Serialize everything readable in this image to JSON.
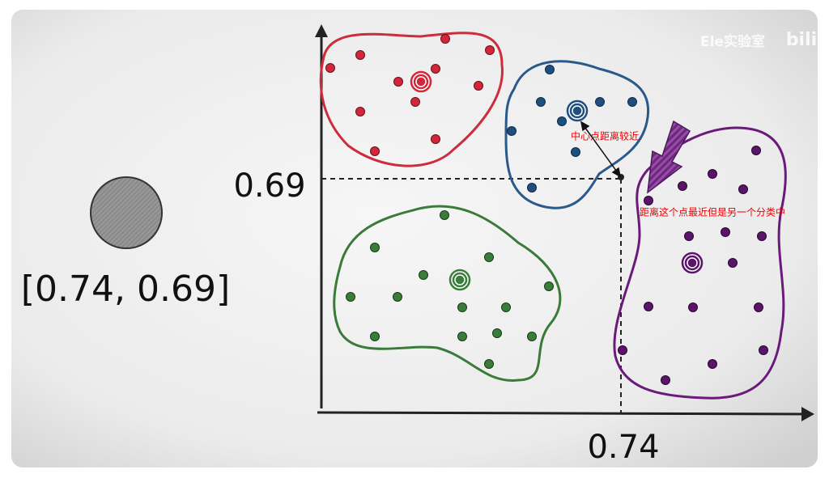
{
  "point": {
    "label": "[0.74, 0.69]"
  },
  "axes": {
    "y_label": "0.69",
    "x_label": "0.74"
  },
  "annotations": {
    "near_center": "中心点距离较近",
    "nearest_other": "距离这个点最近但是另一个分类中"
  },
  "watermark": {
    "text": "Ele实验室",
    "logo": "bili"
  }
}
